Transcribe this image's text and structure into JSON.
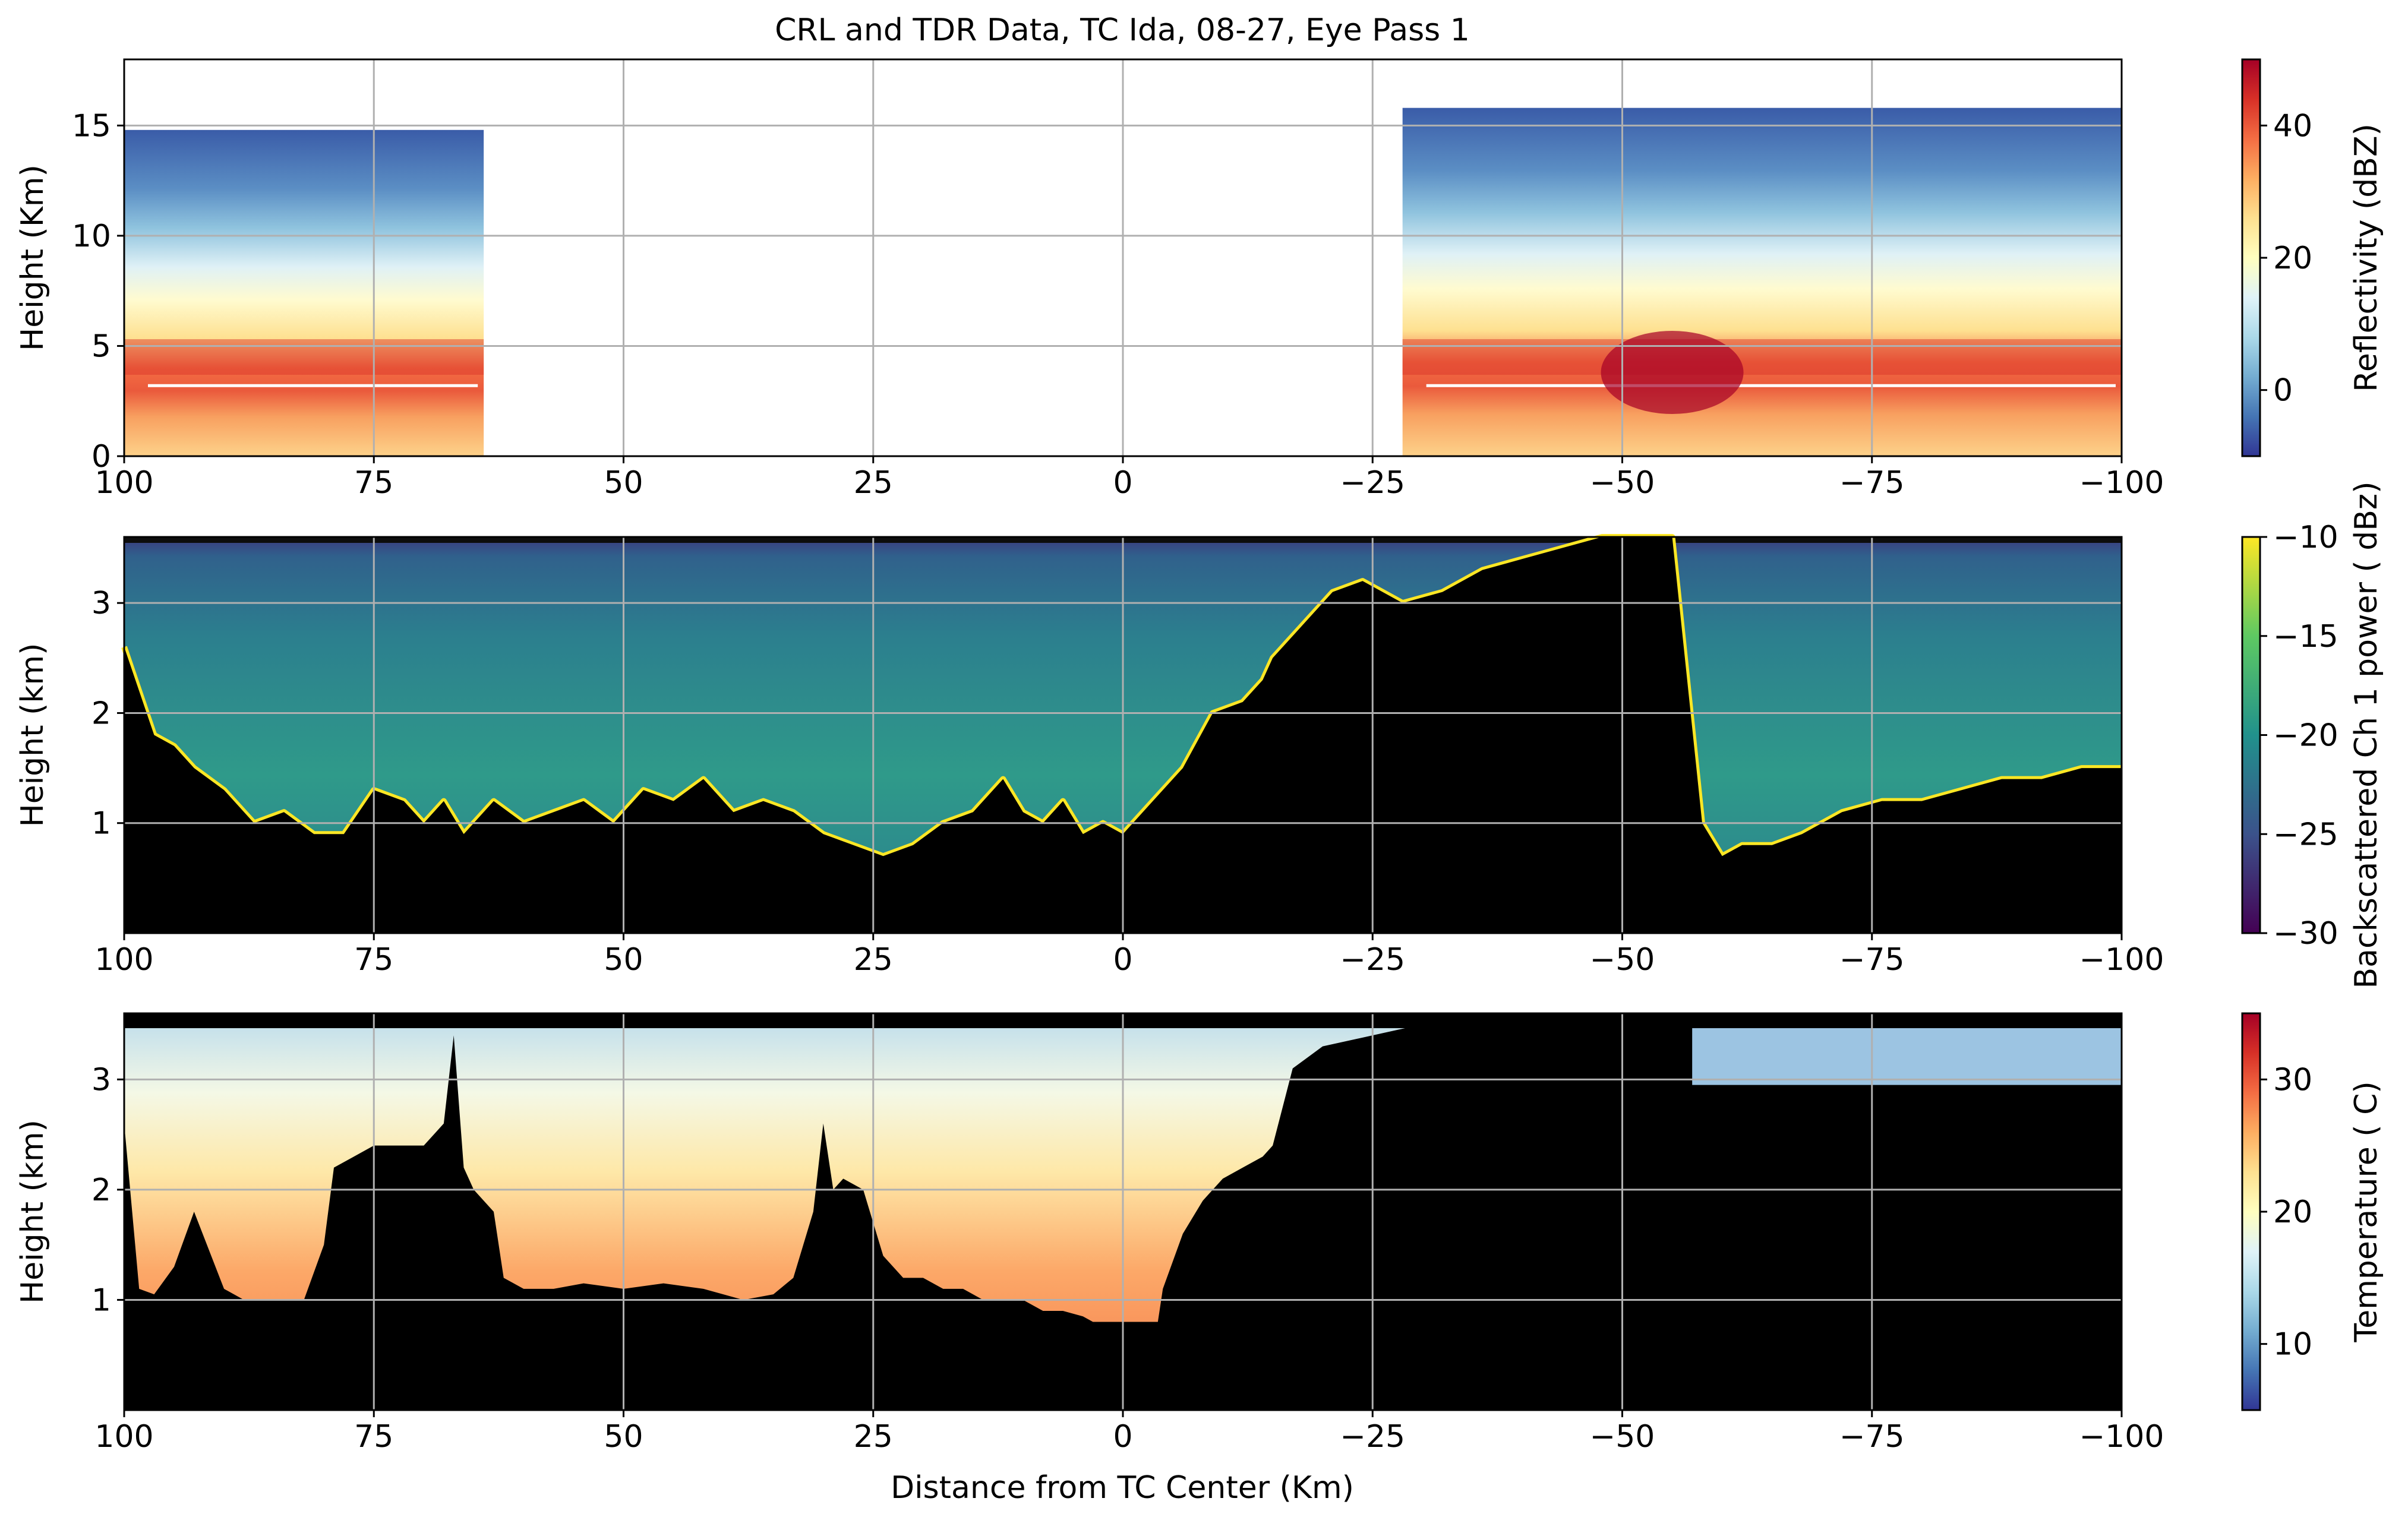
{
  "figure": {
    "title": "CRL and TDR Data, TC Ida, 08-27, Eye Pass 1",
    "xlabel": "Distance from TC Center (Km)"
  },
  "chart_data": [
    {
      "type": "heatmap",
      "panel": "reflectivity",
      "ylabel": "Height (Km)",
      "xlim": [
        100,
        -100
      ],
      "ylim": [
        0,
        18
      ],
      "xticks": [
        100,
        75,
        50,
        25,
        0,
        -25,
        -50,
        -75,
        -100
      ],
      "xtick_labels": [
        "100",
        "75",
        "50",
        "25",
        "0",
        "−25",
        "−50",
        "−75",
        "−100"
      ],
      "yticks": [
        0,
        5,
        10,
        15
      ],
      "ytick_labels": [
        "0",
        "5",
        "10",
        "15"
      ],
      "grid": true,
      "colormap": "RdYlBu_r",
      "colorbar": {
        "label": "Reflectivity (dBZ)",
        "range": [
          -10,
          50
        ],
        "ticks": [
          0,
          20,
          40
        ],
        "tick_labels": [
          "0",
          "20",
          "40"
        ]
      },
      "data_segments": [
        {
          "x_from": 100,
          "x_to": 64,
          "echo_top_km": 14.8
        },
        {
          "x_from": -28,
          "x_to": -100,
          "echo_top_km": 15.8
        }
      ],
      "profile": {
        "heights_km": [
          0.5,
          2,
          3.5,
          4.5,
          6,
          8,
          10,
          12,
          14,
          15.5
        ],
        "dbz": [
          22,
          28,
          34,
          38,
          26,
          18,
          12,
          4,
          -2,
          -6
        ]
      },
      "notes_values": {
        "bright_band_km": 4.5,
        "max_dbz_near_x": -55
      }
    },
    {
      "type": "heatmap",
      "panel": "lidar_backscatter",
      "ylabel": "Height (km)",
      "xlim": [
        100,
        -100
      ],
      "ylim": [
        0,
        3.6
      ],
      "xticks": [
        100,
        75,
        50,
        25,
        0,
        -25,
        -50,
        -75,
        -100
      ],
      "xtick_labels": [
        "100",
        "75",
        "50",
        "25",
        "0",
        "−25",
        "−50",
        "−75",
        "−100"
      ],
      "yticks": [
        1,
        2,
        3
      ],
      "ytick_labels": [
        "1",
        "2",
        "3"
      ],
      "grid": true,
      "colormap": "viridis",
      "colorbar": {
        "label": "Backscattered Ch 1 power ( dBz)",
        "range": [
          -30,
          -10
        ],
        "ticks": [
          -10,
          -15,
          -20,
          -25,
          -30
        ],
        "tick_labels": [
          "−10",
          "−15",
          "−20",
          "−25",
          "−30"
        ]
      },
      "cloud_top_km": {
        "x": [
          100,
          97,
          95,
          93,
          90,
          87,
          84,
          81,
          78,
          75,
          72,
          70,
          68,
          66,
          63,
          60,
          57,
          54,
          51,
          48,
          45,
          42,
          39,
          36,
          33,
          30,
          27,
          24,
          21,
          18,
          15,
          12,
          10,
          8,
          6,
          4,
          2,
          0,
          -3,
          -6,
          -9,
          -12,
          -14,
          -15,
          -18,
          -21,
          -24,
          -28,
          -32,
          -36,
          -40,
          -44,
          -48,
          -52,
          -55,
          -58,
          -60,
          -62,
          -65,
          -68,
          -72,
          -76,
          -80,
          -84,
          -88,
          -92,
          -96,
          -100
        ],
        "y": [
          2.6,
          1.8,
          1.7,
          1.5,
          1.3,
          1.0,
          1.1,
          0.9,
          0.9,
          1.3,
          1.2,
          1.0,
          1.2,
          0.9,
          1.2,
          1.0,
          1.1,
          1.2,
          1.0,
          1.3,
          1.2,
          1.4,
          1.1,
          1.2,
          1.1,
          0.9,
          0.8,
          0.7,
          0.8,
          1.0,
          1.1,
          1.4,
          1.1,
          1.0,
          1.2,
          0.9,
          1.0,
          0.9,
          1.2,
          1.5,
          2.0,
          2.1,
          2.3,
          2.5,
          2.8,
          3.1,
          3.2,
          3.0,
          3.1,
          3.3,
          3.4,
          3.5,
          3.6,
          3.6,
          3.6,
          1.0,
          0.7,
          0.8,
          0.8,
          0.9,
          1.1,
          1.2,
          1.2,
          1.3,
          1.4,
          1.4,
          1.5,
          1.5
        ]
      }
    },
    {
      "type": "heatmap",
      "panel": "temperature",
      "ylabel": "Height (km)",
      "xlim": [
        100,
        -100
      ],
      "ylim": [
        0,
        3.6
      ],
      "xticks": [
        100,
        75,
        50,
        25,
        0,
        -25,
        -50,
        -75,
        -100
      ],
      "xtick_labels": [
        "100",
        "75",
        "50",
        "25",
        "0",
        "−25",
        "−50",
        "−75",
        "−100"
      ],
      "yticks": [
        1,
        2,
        3
      ],
      "ytick_labels": [
        "1",
        "2",
        "3"
      ],
      "grid": true,
      "colormap": "RdYlBu_r",
      "colorbar": {
        "label": "Temperature ( C)",
        "range": [
          5,
          35
        ],
        "ticks": [
          10,
          20,
          30
        ],
        "tick_labels": [
          "10",
          "20",
          "30"
        ]
      },
      "terrain_top_km": {
        "x": [
          100,
          98.5,
          97,
          95,
          93,
          90,
          88,
          86,
          84,
          82,
          80,
          79,
          77,
          75,
          73,
          70,
          68,
          67,
          66,
          65,
          63,
          62,
          60,
          57,
          54,
          50,
          46,
          42,
          38,
          35,
          33,
          31,
          30,
          29,
          28,
          26,
          24,
          22,
          20,
          18,
          16,
          14,
          12,
          10,
          8,
          6,
          4,
          3,
          2,
          0,
          -2,
          -3.5,
          -4,
          -6,
          -8,
          -10,
          -12,
          -14,
          -15,
          -17,
          -20,
          -25,
          -30,
          -35,
          -40,
          -45,
          -50,
          -55,
          -57,
          -60,
          -65,
          -70,
          -75,
          -80,
          -85,
          -90,
          -95,
          -100
        ],
        "y": [
          2.6,
          1.1,
          1.05,
          1.3,
          1.8,
          1.1,
          1.0,
          1.0,
          1.0,
          1.0,
          1.5,
          2.2,
          2.3,
          2.4,
          2.4,
          2.4,
          2.6,
          3.4,
          2.2,
          2.0,
          1.8,
          1.2,
          1.1,
          1.1,
          1.15,
          1.1,
          1.15,
          1.1,
          1.0,
          1.05,
          1.2,
          1.8,
          2.6,
          2.0,
          2.1,
          2.0,
          1.4,
          1.2,
          1.2,
          1.1,
          1.1,
          1.0,
          1.0,
          1.0,
          0.9,
          0.9,
          0.85,
          0.8,
          0.8,
          0.8,
          0.8,
          0.8,
          1.1,
          1.6,
          1.9,
          2.1,
          2.2,
          2.3,
          2.4,
          3.1,
          3.3,
          3.4,
          3.5,
          3.5,
          3.5,
          3.5,
          3.5,
          3.5,
          3.5,
          3.5,
          3.5,
          3.5,
          3.5,
          3.5,
          3.5,
          3.5,
          3.5,
          3.5
        ],
        "sensor_top_km": {
          "x_from": -57,
          "x_to": -100,
          "y": 2.95
        }
      }
    }
  ]
}
